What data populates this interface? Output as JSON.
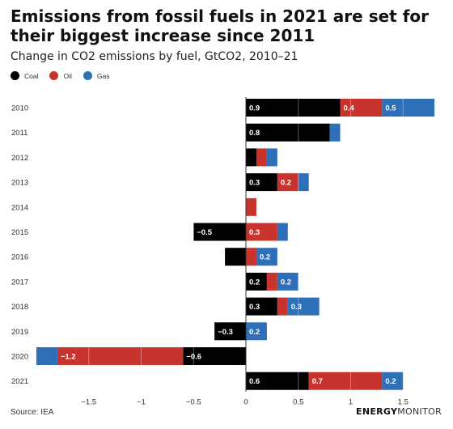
{
  "header": {
    "title": "Emissions from fossil fuels in 2021 are set for their biggest increase since 2011",
    "subtitle": "Change in CO2 emissions by fuel, GtCO2, 2010–21"
  },
  "legend": [
    {
      "label": "Coal",
      "color": "#000000"
    },
    {
      "label": "Oil",
      "color": "#c8342d"
    },
    {
      "label": "Gas",
      "color": "#2e6fba"
    }
  ],
  "footer": {
    "source": "Source: IEA",
    "logo_part1": "ENERGY",
    "logo_part2": "MONITOR"
  },
  "chart_data": {
    "type": "bar",
    "orientation": "horizontal",
    "stacked": true,
    "categories": [
      "2010",
      "2011",
      "2012",
      "2013",
      "2014",
      "2015",
      "2016",
      "2017",
      "2018",
      "2019",
      "2020",
      "2021"
    ],
    "series": [
      {
        "name": "Coal",
        "color": "#000000",
        "values": [
          0.9,
          0.8,
          0.1,
          0.3,
          0.0,
          -0.5,
          -0.2,
          0.2,
          0.3,
          -0.3,
          -0.6,
          0.6
        ]
      },
      {
        "name": "Oil",
        "color": "#c8342d",
        "values": [
          0.4,
          0.0,
          0.1,
          0.2,
          0.1,
          0.3,
          0.1,
          0.1,
          0.1,
          0.0,
          -1.2,
          0.7
        ]
      },
      {
        "name": "Gas",
        "color": "#2e6fba",
        "values": [
          0.5,
          0.1,
          0.1,
          0.1,
          0.0,
          0.1,
          0.2,
          0.2,
          0.3,
          0.2,
          -0.2,
          0.2
        ]
      }
    ],
    "data_labels": [
      [
        "0.9",
        "0.4",
        "0.5"
      ],
      [
        "0.8",
        "",
        ""
      ],
      [
        "",
        "",
        ""
      ],
      [
        "0.3",
        "0.2",
        ""
      ],
      [
        "",
        "",
        ""
      ],
      [
        "−0.5",
        "0.3",
        ""
      ],
      [
        "",
        "",
        "0.2"
      ],
      [
        "0.2",
        "",
        "0.2"
      ],
      [
        "0.3",
        "",
        "0.3"
      ],
      [
        "−0.3",
        "",
        "0.2"
      ],
      [
        "−0.6",
        "−1.2",
        ""
      ],
      [
        "0.6",
        "0.7",
        "0.2"
      ]
    ],
    "xlim": [
      -1.95,
      1.8
    ],
    "xticks": [
      -1.5,
      -1,
      -0.5,
      0,
      0.5,
      1,
      1.5
    ],
    "xtick_labels": [
      "−1.5",
      "−1",
      "−0.5",
      "0",
      "0.5",
      "1",
      "1.5"
    ],
    "grid": false,
    "legend_position": "top-left"
  }
}
